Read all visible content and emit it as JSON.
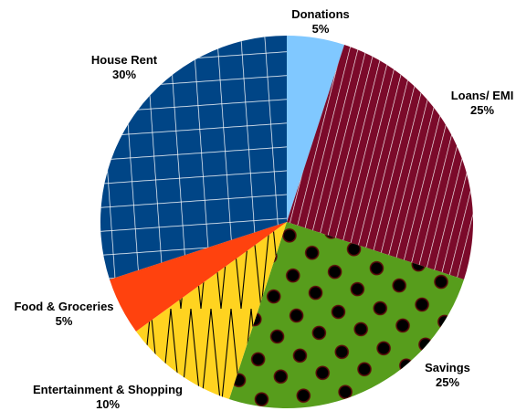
{
  "chart_data": {
    "type": "pie",
    "slices": [
      {
        "label": "Donations",
        "value": 5,
        "percent_label": "5%",
        "color": "#80c8ff",
        "pattern": "solid"
      },
      {
        "label": "Loans/ EMI",
        "value": 25,
        "percent_label": "25%",
        "color": "#7b0a2a",
        "pattern": "diagonal-hatch"
      },
      {
        "label": "Savings",
        "value": 25,
        "percent_label": "25%",
        "color": "#579d1c",
        "pattern": "dots"
      },
      {
        "label": "Entertainment & Shopping",
        "value": 10,
        "percent_label": "10%",
        "color": "#ffd320",
        "pattern": "zigzag"
      },
      {
        "label": "Food & Groceries",
        "value": 5,
        "percent_label": "5%",
        "color": "#ff420e",
        "pattern": "solid"
      },
      {
        "label": "House Rent",
        "value": 30,
        "percent_label": "30%",
        "color": "#004586",
        "pattern": "grid"
      }
    ],
    "start_angle_deg": 0,
    "direction": "clockwise",
    "legend": "none"
  }
}
